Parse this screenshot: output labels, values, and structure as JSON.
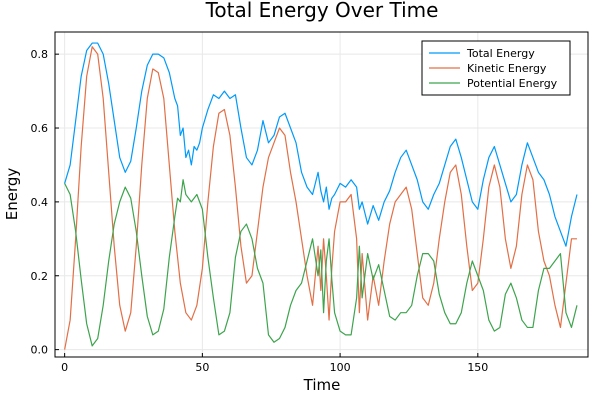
{
  "chart_data": {
    "type": "line",
    "title": "Total Energy Over Time",
    "xlabel": "Time",
    "ylabel": "Energy",
    "xlim": [
      -3.5,
      190
    ],
    "ylim": [
      -0.02,
      0.86
    ],
    "xticks": [
      0,
      50,
      100,
      150
    ],
    "xtick_labels": [
      "0",
      "50",
      "100",
      "150"
    ],
    "yticks": [
      0.0,
      0.2,
      0.4,
      0.6,
      0.8
    ],
    "ytick_labels": [
      "0.0",
      "0.2",
      "0.4",
      "0.6",
      "0.8"
    ],
    "grid": true,
    "legend_position": "top-right",
    "series": [
      {
        "name": "Total Energy",
        "color": "#009AFA",
        "points": [
          [
            0,
            0.45
          ],
          [
            2,
            0.5
          ],
          [
            4,
            0.62
          ],
          [
            6,
            0.74
          ],
          [
            8,
            0.81
          ],
          [
            10,
            0.83
          ],
          [
            12,
            0.83
          ],
          [
            14,
            0.8
          ],
          [
            16,
            0.72
          ],
          [
            18,
            0.62
          ],
          [
            20,
            0.52
          ],
          [
            22,
            0.48
          ],
          [
            24,
            0.51
          ],
          [
            26,
            0.6
          ],
          [
            28,
            0.7
          ],
          [
            30,
            0.77
          ],
          [
            32,
            0.8
          ],
          [
            34,
            0.8
          ],
          [
            36,
            0.79
          ],
          [
            38,
            0.75
          ],
          [
            40,
            0.68
          ],
          [
            41,
            0.66
          ],
          [
            42,
            0.58
          ],
          [
            43,
            0.6
          ],
          [
            44,
            0.52
          ],
          [
            45,
            0.54
          ],
          [
            46,
            0.5
          ],
          [
            47,
            0.55
          ],
          [
            48,
            0.54
          ],
          [
            49,
            0.56
          ],
          [
            50,
            0.6
          ],
          [
            52,
            0.65
          ],
          [
            54,
            0.69
          ],
          [
            56,
            0.68
          ],
          [
            58,
            0.7
          ],
          [
            60,
            0.68
          ],
          [
            62,
            0.69
          ],
          [
            64,
            0.6
          ],
          [
            66,
            0.52
          ],
          [
            68,
            0.5
          ],
          [
            70,
            0.54
          ],
          [
            72,
            0.62
          ],
          [
            74,
            0.56
          ],
          [
            76,
            0.58
          ],
          [
            78,
            0.63
          ],
          [
            80,
            0.64
          ],
          [
            82,
            0.6
          ],
          [
            84,
            0.56
          ],
          [
            86,
            0.48
          ],
          [
            88,
            0.44
          ],
          [
            90,
            0.42
          ],
          [
            92,
            0.48
          ],
          [
            93,
            0.43
          ],
          [
            94,
            0.4
          ],
          [
            95,
            0.44
          ],
          [
            96,
            0.38
          ],
          [
            97,
            0.41
          ],
          [
            98,
            0.42
          ],
          [
            100,
            0.45
          ],
          [
            102,
            0.44
          ],
          [
            104,
            0.46
          ],
          [
            106,
            0.44
          ],
          [
            107,
            0.38
          ],
          [
            108,
            0.4
          ],
          [
            110,
            0.34
          ],
          [
            112,
            0.39
          ],
          [
            114,
            0.35
          ],
          [
            116,
            0.4
          ],
          [
            118,
            0.43
          ],
          [
            120,
            0.48
          ],
          [
            122,
            0.52
          ],
          [
            124,
            0.54
          ],
          [
            126,
            0.5
          ],
          [
            128,
            0.46
          ],
          [
            130,
            0.4
          ],
          [
            132,
            0.38
          ],
          [
            134,
            0.42
          ],
          [
            136,
            0.45
          ],
          [
            138,
            0.5
          ],
          [
            140,
            0.55
          ],
          [
            142,
            0.57
          ],
          [
            144,
            0.52
          ],
          [
            146,
            0.46
          ],
          [
            148,
            0.4
          ],
          [
            150,
            0.38
          ],
          [
            152,
            0.46
          ],
          [
            154,
            0.52
          ],
          [
            156,
            0.55
          ],
          [
            158,
            0.5
          ],
          [
            160,
            0.45
          ],
          [
            162,
            0.4
          ],
          [
            164,
            0.42
          ],
          [
            166,
            0.5
          ],
          [
            168,
            0.56
          ],
          [
            170,
            0.52
          ],
          [
            172,
            0.48
          ],
          [
            174,
            0.46
          ],
          [
            176,
            0.42
          ],
          [
            178,
            0.36
          ],
          [
            180,
            0.32
          ],
          [
            182,
            0.28
          ],
          [
            184,
            0.36
          ],
          [
            186,
            0.42
          ]
        ]
      },
      {
        "name": "Kinetic Energy",
        "color": "#E26F46",
        "points": [
          [
            0,
            0.0
          ],
          [
            2,
            0.08
          ],
          [
            4,
            0.3
          ],
          [
            6,
            0.55
          ],
          [
            8,
            0.74
          ],
          [
            10,
            0.82
          ],
          [
            12,
            0.8
          ],
          [
            14,
            0.68
          ],
          [
            16,
            0.48
          ],
          [
            18,
            0.28
          ],
          [
            20,
            0.12
          ],
          [
            22,
            0.05
          ],
          [
            24,
            0.1
          ],
          [
            26,
            0.28
          ],
          [
            28,
            0.5
          ],
          [
            30,
            0.68
          ],
          [
            32,
            0.76
          ],
          [
            34,
            0.75
          ],
          [
            36,
            0.68
          ],
          [
            38,
            0.5
          ],
          [
            40,
            0.32
          ],
          [
            41,
            0.25
          ],
          [
            42,
            0.18
          ],
          [
            43,
            0.14
          ],
          [
            44,
            0.1
          ],
          [
            46,
            0.08
          ],
          [
            48,
            0.12
          ],
          [
            50,
            0.22
          ],
          [
            52,
            0.4
          ],
          [
            54,
            0.55
          ],
          [
            56,
            0.64
          ],
          [
            58,
            0.65
          ],
          [
            60,
            0.58
          ],
          [
            62,
            0.44
          ],
          [
            64,
            0.28
          ],
          [
            66,
            0.18
          ],
          [
            68,
            0.2
          ],
          [
            70,
            0.32
          ],
          [
            72,
            0.44
          ],
          [
            74,
            0.52
          ],
          [
            76,
            0.56
          ],
          [
            78,
            0.6
          ],
          [
            80,
            0.58
          ],
          [
            82,
            0.48
          ],
          [
            84,
            0.4
          ],
          [
            86,
            0.3
          ],
          [
            88,
            0.2
          ],
          [
            90,
            0.12
          ],
          [
            92,
            0.28
          ],
          [
            93,
            0.16
          ],
          [
            94,
            0.3
          ],
          [
            95,
            0.2
          ],
          [
            96,
            0.08
          ],
          [
            97,
            0.22
          ],
          [
            98,
            0.32
          ],
          [
            100,
            0.4
          ],
          [
            102,
            0.4
          ],
          [
            104,
            0.42
          ],
          [
            106,
            0.3
          ],
          [
            107,
            0.1
          ],
          [
            108,
            0.26
          ],
          [
            110,
            0.08
          ],
          [
            112,
            0.2
          ],
          [
            114,
            0.12
          ],
          [
            116,
            0.24
          ],
          [
            118,
            0.34
          ],
          [
            120,
            0.4
          ],
          [
            122,
            0.42
          ],
          [
            124,
            0.44
          ],
          [
            126,
            0.38
          ],
          [
            128,
            0.26
          ],
          [
            130,
            0.14
          ],
          [
            132,
            0.12
          ],
          [
            134,
            0.18
          ],
          [
            136,
            0.3
          ],
          [
            138,
            0.4
          ],
          [
            140,
            0.48
          ],
          [
            142,
            0.5
          ],
          [
            144,
            0.42
          ],
          [
            146,
            0.28
          ],
          [
            148,
            0.16
          ],
          [
            150,
            0.18
          ],
          [
            152,
            0.3
          ],
          [
            154,
            0.44
          ],
          [
            156,
            0.5
          ],
          [
            158,
            0.44
          ],
          [
            160,
            0.3
          ],
          [
            162,
            0.22
          ],
          [
            164,
            0.28
          ],
          [
            166,
            0.42
          ],
          [
            168,
            0.5
          ],
          [
            170,
            0.46
          ],
          [
            172,
            0.32
          ],
          [
            174,
            0.24
          ],
          [
            176,
            0.2
          ],
          [
            178,
            0.12
          ],
          [
            180,
            0.06
          ],
          [
            182,
            0.18
          ],
          [
            184,
            0.3
          ],
          [
            186,
            0.3
          ]
        ]
      },
      {
        "name": "Potential Energy",
        "color": "#3DA44D",
        "points": [
          [
            0,
            0.45
          ],
          [
            2,
            0.42
          ],
          [
            4,
            0.32
          ],
          [
            6,
            0.19
          ],
          [
            8,
            0.07
          ],
          [
            10,
            0.01
          ],
          [
            12,
            0.03
          ],
          [
            14,
            0.12
          ],
          [
            16,
            0.24
          ],
          [
            18,
            0.34
          ],
          [
            20,
            0.4
          ],
          [
            22,
            0.44
          ],
          [
            24,
            0.41
          ],
          [
            26,
            0.32
          ],
          [
            28,
            0.2
          ],
          [
            30,
            0.09
          ],
          [
            32,
            0.04
          ],
          [
            34,
            0.05
          ],
          [
            36,
            0.11
          ],
          [
            38,
            0.25
          ],
          [
            40,
            0.36
          ],
          [
            41,
            0.41
          ],
          [
            42,
            0.4
          ],
          [
            43,
            0.46
          ],
          [
            44,
            0.42
          ],
          [
            46,
            0.4
          ],
          [
            48,
            0.42
          ],
          [
            50,
            0.38
          ],
          [
            52,
            0.25
          ],
          [
            54,
            0.14
          ],
          [
            56,
            0.04
          ],
          [
            58,
            0.05
          ],
          [
            60,
            0.1
          ],
          [
            62,
            0.25
          ],
          [
            64,
            0.32
          ],
          [
            66,
            0.34
          ],
          [
            68,
            0.3
          ],
          [
            70,
            0.22
          ],
          [
            72,
            0.18
          ],
          [
            74,
            0.04
          ],
          [
            76,
            0.02
          ],
          [
            78,
            0.03
          ],
          [
            80,
            0.06
          ],
          [
            82,
            0.12
          ],
          [
            84,
            0.16
          ],
          [
            86,
            0.18
          ],
          [
            88,
            0.24
          ],
          [
            90,
            0.3
          ],
          [
            92,
            0.2
          ],
          [
            93,
            0.27
          ],
          [
            94,
            0.1
          ],
          [
            95,
            0.24
          ],
          [
            96,
            0.3
          ],
          [
            97,
            0.19
          ],
          [
            98,
            0.1
          ],
          [
            100,
            0.05
          ],
          [
            102,
            0.04
          ],
          [
            104,
            0.04
          ],
          [
            106,
            0.14
          ],
          [
            107,
            0.28
          ],
          [
            108,
            0.14
          ],
          [
            110,
            0.26
          ],
          [
            112,
            0.19
          ],
          [
            114,
            0.23
          ],
          [
            116,
            0.16
          ],
          [
            118,
            0.09
          ],
          [
            120,
            0.08
          ],
          [
            122,
            0.1
          ],
          [
            124,
            0.1
          ],
          [
            126,
            0.12
          ],
          [
            128,
            0.2
          ],
          [
            130,
            0.26
          ],
          [
            132,
            0.26
          ],
          [
            134,
            0.24
          ],
          [
            136,
            0.15
          ],
          [
            138,
            0.1
          ],
          [
            140,
            0.07
          ],
          [
            142,
            0.07
          ],
          [
            144,
            0.1
          ],
          [
            146,
            0.18
          ],
          [
            148,
            0.24
          ],
          [
            150,
            0.2
          ],
          [
            152,
            0.16
          ],
          [
            154,
            0.08
          ],
          [
            156,
            0.05
          ],
          [
            158,
            0.06
          ],
          [
            160,
            0.15
          ],
          [
            162,
            0.18
          ],
          [
            164,
            0.14
          ],
          [
            166,
            0.08
          ],
          [
            168,
            0.06
          ],
          [
            170,
            0.06
          ],
          [
            172,
            0.16
          ],
          [
            174,
            0.22
          ],
          [
            176,
            0.22
          ],
          [
            178,
            0.24
          ],
          [
            180,
            0.26
          ],
          [
            182,
            0.1
          ],
          [
            184,
            0.06
          ],
          [
            186,
            0.12
          ]
        ]
      }
    ]
  }
}
